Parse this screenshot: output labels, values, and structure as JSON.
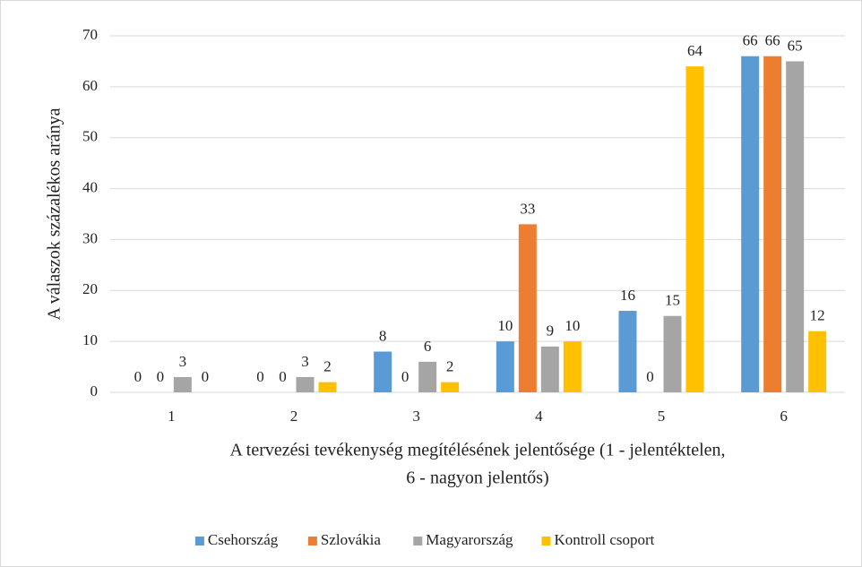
{
  "chart_data": {
    "type": "bar",
    "ylabel": "A válaszok százalékos aránya",
    "xlabel": [
      "A tervezési tevékenység  megítélésének jelentősége (1 - jelentéktelen,",
      "6 - nagyon jelentős)"
    ],
    "categories": [
      "1",
      "2",
      "3",
      "4",
      "5",
      "6"
    ],
    "series": [
      {
        "name": "Csehország",
        "color": "#5b9bd5",
        "values": [
          0,
          0,
          8,
          10,
          16,
          66
        ]
      },
      {
        "name": "Szlovákia",
        "color": "#ed7d31",
        "values": [
          0,
          0,
          0,
          33,
          0,
          66
        ]
      },
      {
        "name": "Magyarország",
        "color": "#a5a5a5",
        "values": [
          3,
          3,
          6,
          9,
          15,
          65
        ]
      },
      {
        "name": "Kontroll csoport",
        "color": "#ffc000",
        "values": [
          0,
          2,
          2,
          10,
          64,
          12
        ]
      }
    ],
    "ylim": [
      0,
      70
    ],
    "yticks": [
      0,
      10,
      20,
      30,
      40,
      50,
      60,
      70
    ],
    "grid": true,
    "legend": "bottom"
  }
}
